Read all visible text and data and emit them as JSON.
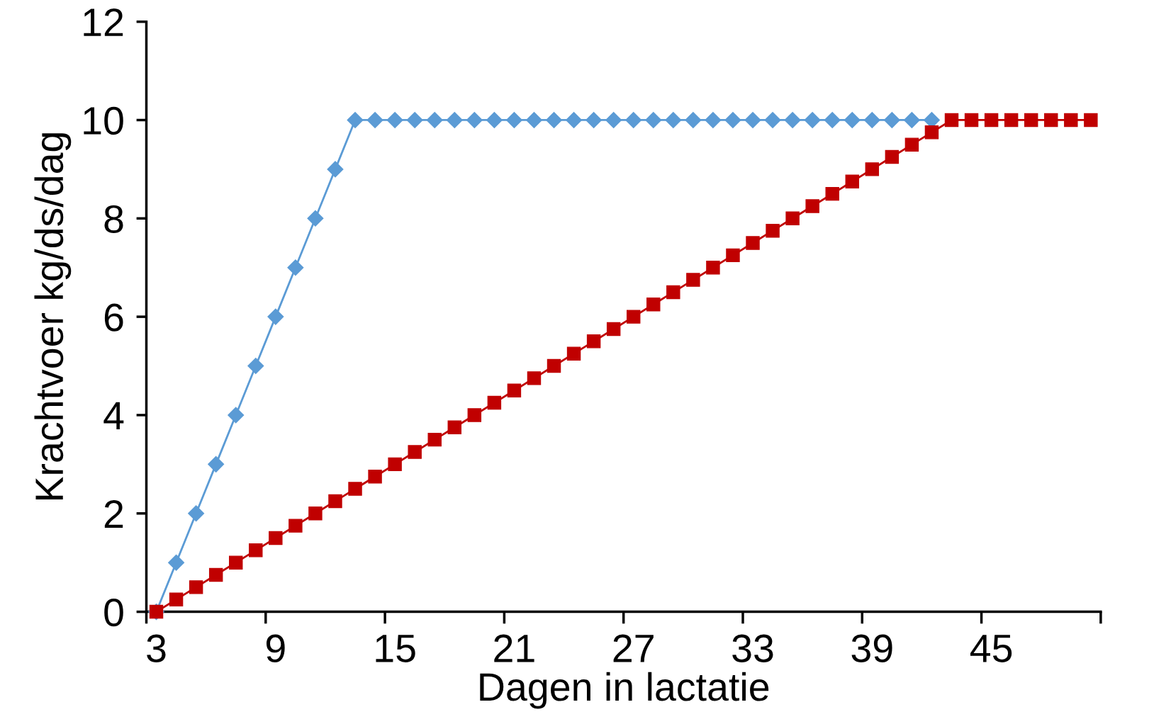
{
  "chart_data": {
    "type": "line",
    "xlabel": "Dagen in lactatie",
    "ylabel": "Krachtvoer kg/ds/dag",
    "categories": [
      "3",
      null,
      null,
      null,
      null,
      null,
      "9",
      null,
      null,
      null,
      null,
      null,
      "15",
      null,
      null,
      null,
      null,
      null,
      "21",
      null,
      null,
      null,
      null,
      null,
      "27",
      null,
      null,
      null,
      null,
      null,
      "33",
      null,
      null,
      null,
      null,
      null,
      "39",
      null,
      null,
      null,
      null,
      null,
      "45",
      null,
      null,
      null,
      null,
      null
    ],
    "ylim": [
      0,
      12
    ],
    "yticks": [
      0,
      2,
      4,
      6,
      8,
      10,
      12
    ],
    "grid": false,
    "line_style": "solid",
    "series": [
      {
        "color": "#5b9bd5",
        "marker": "diamond",
        "values": [
          0,
          1,
          2,
          3,
          4,
          5,
          6,
          7,
          8,
          9,
          10,
          10,
          10,
          10,
          10,
          10,
          10,
          10,
          10,
          10,
          10,
          10,
          10,
          10,
          10,
          10,
          10,
          10,
          10,
          10,
          10,
          10,
          10,
          10,
          10,
          10,
          10,
          10,
          10,
          10,
          null,
          null,
          null,
          null,
          null,
          null,
          null,
          null
        ]
      },
      {
        "color": "#c00000",
        "marker": "square",
        "values": [
          0,
          0.25,
          0.5,
          0.75,
          1,
          1.25,
          1.5,
          1.75,
          2,
          2.25,
          2.5,
          2.75,
          3,
          3.25,
          3.5,
          3.75,
          4,
          4.25,
          4.5,
          4.75,
          5,
          5.25,
          5.5,
          5.75,
          6,
          6.25,
          6.5,
          6.75,
          7,
          7.25,
          7.5,
          7.75,
          8,
          8.25,
          8.5,
          8.75,
          9,
          9.25,
          9.5,
          9.75,
          10,
          10,
          10,
          10,
          10,
          10,
          10,
          10
        ]
      }
    ]
  }
}
